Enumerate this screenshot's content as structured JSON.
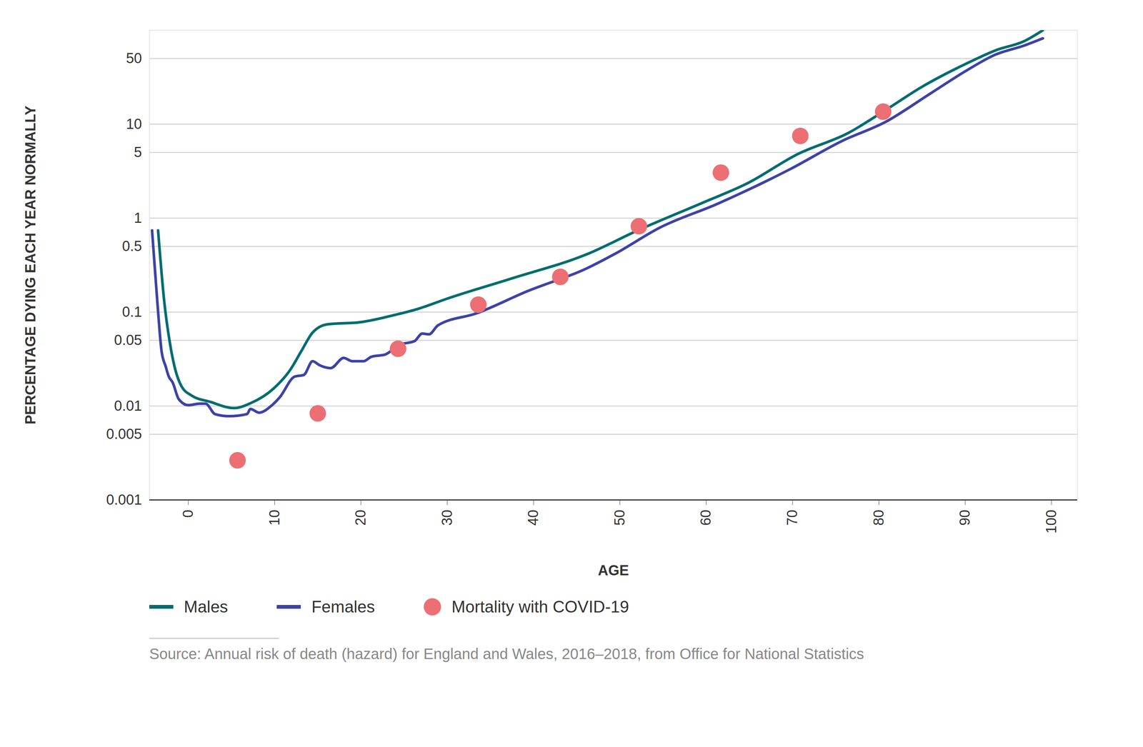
{
  "chart_data": {
    "type": "line",
    "xlabel": "AGE",
    "ylabel": "PERCENTAGE DYING EACH YEAR NORMALLY",
    "caption": "Source: Annual risk of death (hazard) for England and Wales, 2016–2018, from Office for National Statistics",
    "log": "y",
    "grid": true,
    "xlim": [
      -4.5,
      103
    ],
    "xticks": [
      0,
      10,
      20,
      30,
      40,
      50,
      60,
      70,
      80,
      90,
      100
    ],
    "ylim": [
      0.001,
      100
    ],
    "yticks": [
      0.001,
      0.005,
      0.01,
      0.05,
      0.1,
      0.5,
      1,
      5,
      10,
      50
    ],
    "series": [
      {
        "name": "Males",
        "color": "#006d70",
        "type": "line",
        "x": [
          -3.5,
          -2.8,
          -2.1,
          -1.6,
          -0.8,
          0.4,
          2.5,
          5.3,
          7.2,
          9.9,
          11.8,
          13.1,
          14.4,
          16.1,
          19.9,
          24.1,
          26.6,
          30,
          37.6,
          46.1,
          52.2,
          59.6,
          64.7,
          70.6,
          76.5,
          80.5,
          85.0,
          90.1,
          93.5,
          96.9,
          99.0
        ],
        "values": [
          0.74,
          0.133,
          0.045,
          0.0264,
          0.0163,
          0.0129,
          0.0111,
          0.0095,
          0.0107,
          0.0154,
          0.0242,
          0.0385,
          0.0605,
          0.074,
          0.078,
          0.094,
          0.108,
          0.139,
          0.23,
          0.41,
          0.75,
          1.46,
          2.33,
          4.8,
          8.1,
          13.6,
          25,
          44,
          61,
          77,
          100
        ]
      },
      {
        "name": "Females",
        "color": "#3d43a6",
        "type": "line",
        "x": [
          -4.2,
          -3.6,
          -3.1,
          -2.6,
          -2.3,
          -1.8,
          -1.1,
          0,
          1.3,
          2.0,
          3.1,
          4.7,
          6.8,
          7.2,
          8.2,
          9.7,
          10.6,
          12.3,
          13.4,
          14.4,
          15.2,
          16.5,
          18.0,
          19.0,
          20.3,
          21.2,
          22.8,
          24.5,
          26.2,
          27.1,
          27.9,
          28.9,
          33.4,
          39.3,
          46.1,
          49.5,
          54.6,
          61.3,
          69.8,
          75.7,
          80.8,
          85.9,
          90.1,
          93.5,
          96.9,
          99.0
        ],
        "values": [
          0.74,
          0.133,
          0.0385,
          0.026,
          0.021,
          0.0177,
          0.0118,
          0.0102,
          0.0106,
          0.0106,
          0.0082,
          0.0078,
          0.0082,
          0.0093,
          0.0085,
          0.0102,
          0.0124,
          0.0205,
          0.0215,
          0.03,
          0.0272,
          0.0253,
          0.0325,
          0.03,
          0.03,
          0.0334,
          0.0353,
          0.045,
          0.049,
          0.059,
          0.058,
          0.072,
          0.097,
          0.167,
          0.29,
          0.42,
          0.79,
          1.42,
          3.35,
          6.6,
          10.6,
          21,
          37,
          55,
          69,
          82
        ]
      },
      {
        "name": "Mortality with COVID-19",
        "color": "#ec6f73",
        "type": "scatter",
        "marker": "circle",
        "x": [
          5.7,
          15.0,
          24.3,
          33.6,
          43.1,
          52.2,
          61.7,
          70.9,
          80.5
        ],
        "values": [
          0.00264,
          0.00835,
          0.0407,
          0.12,
          0.237,
          0.82,
          3.05,
          7.5,
          13.6
        ]
      }
    ]
  }
}
